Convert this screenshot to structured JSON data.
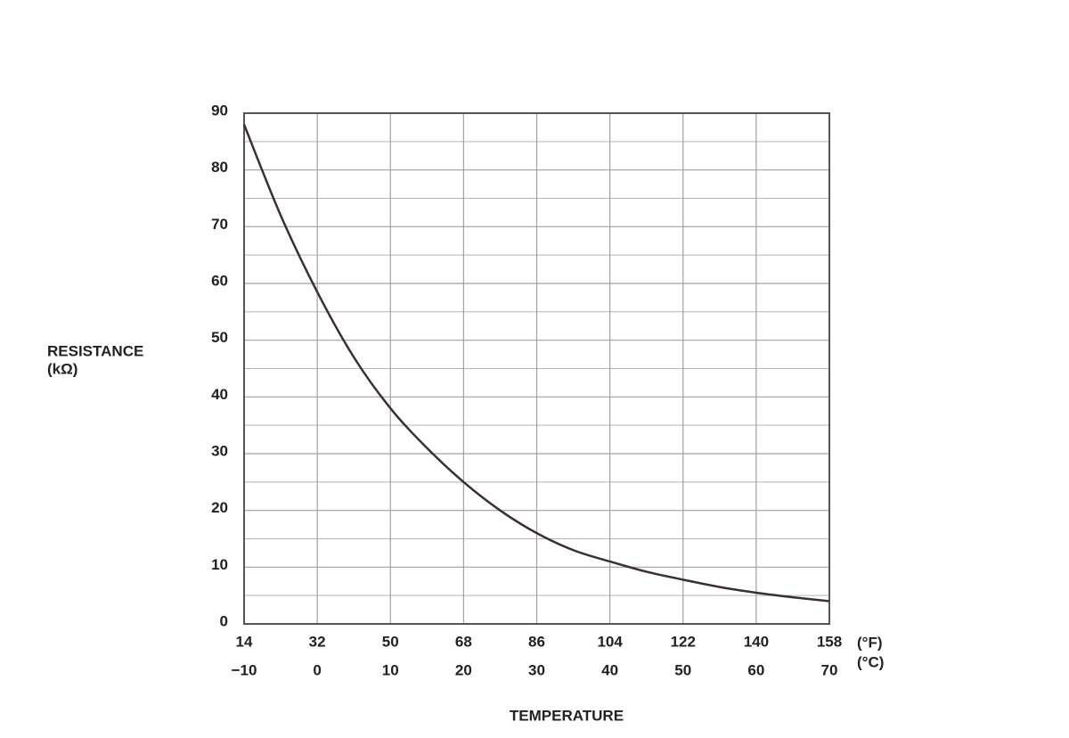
{
  "chart_data": {
    "type": "line",
    "xlabel": "TEMPERATURE",
    "ylabel": [
      "RESISTANCE",
      "(kΩ)"
    ],
    "x_unit": "(°C)",
    "x2_unit": "(°F)",
    "x": [
      -10,
      -5,
      0,
      5,
      10,
      15,
      20,
      25,
      30,
      35,
      40,
      45,
      50,
      55,
      60,
      65,
      70
    ],
    "series": [
      {
        "color": "#3a3030",
        "values": [
          88,
          72,
          58.5,
          47,
          38,
          31,
          25,
          20,
          16,
          13,
          11,
          9.2,
          7.8,
          6.5,
          5.5,
          4.7,
          4
        ]
      }
    ],
    "xlim": [
      -10,
      70
    ],
    "xticks": [
      {
        "value": -10,
        "label": "−10"
      },
      0,
      10,
      20,
      30,
      40,
      50,
      60,
      70
    ],
    "x2lim": [
      14,
      158
    ],
    "x2ticks": [
      14,
      32,
      50,
      68,
      86,
      104,
      122,
      140,
      158
    ],
    "ylim": [
      0,
      90
    ],
    "yticks": [
      0,
      10,
      20,
      30,
      40,
      50,
      60,
      70,
      80,
      90
    ],
    "yminor": [
      5,
      15,
      25,
      35,
      45,
      55,
      65,
      75,
      85
    ],
    "grid": true
  }
}
